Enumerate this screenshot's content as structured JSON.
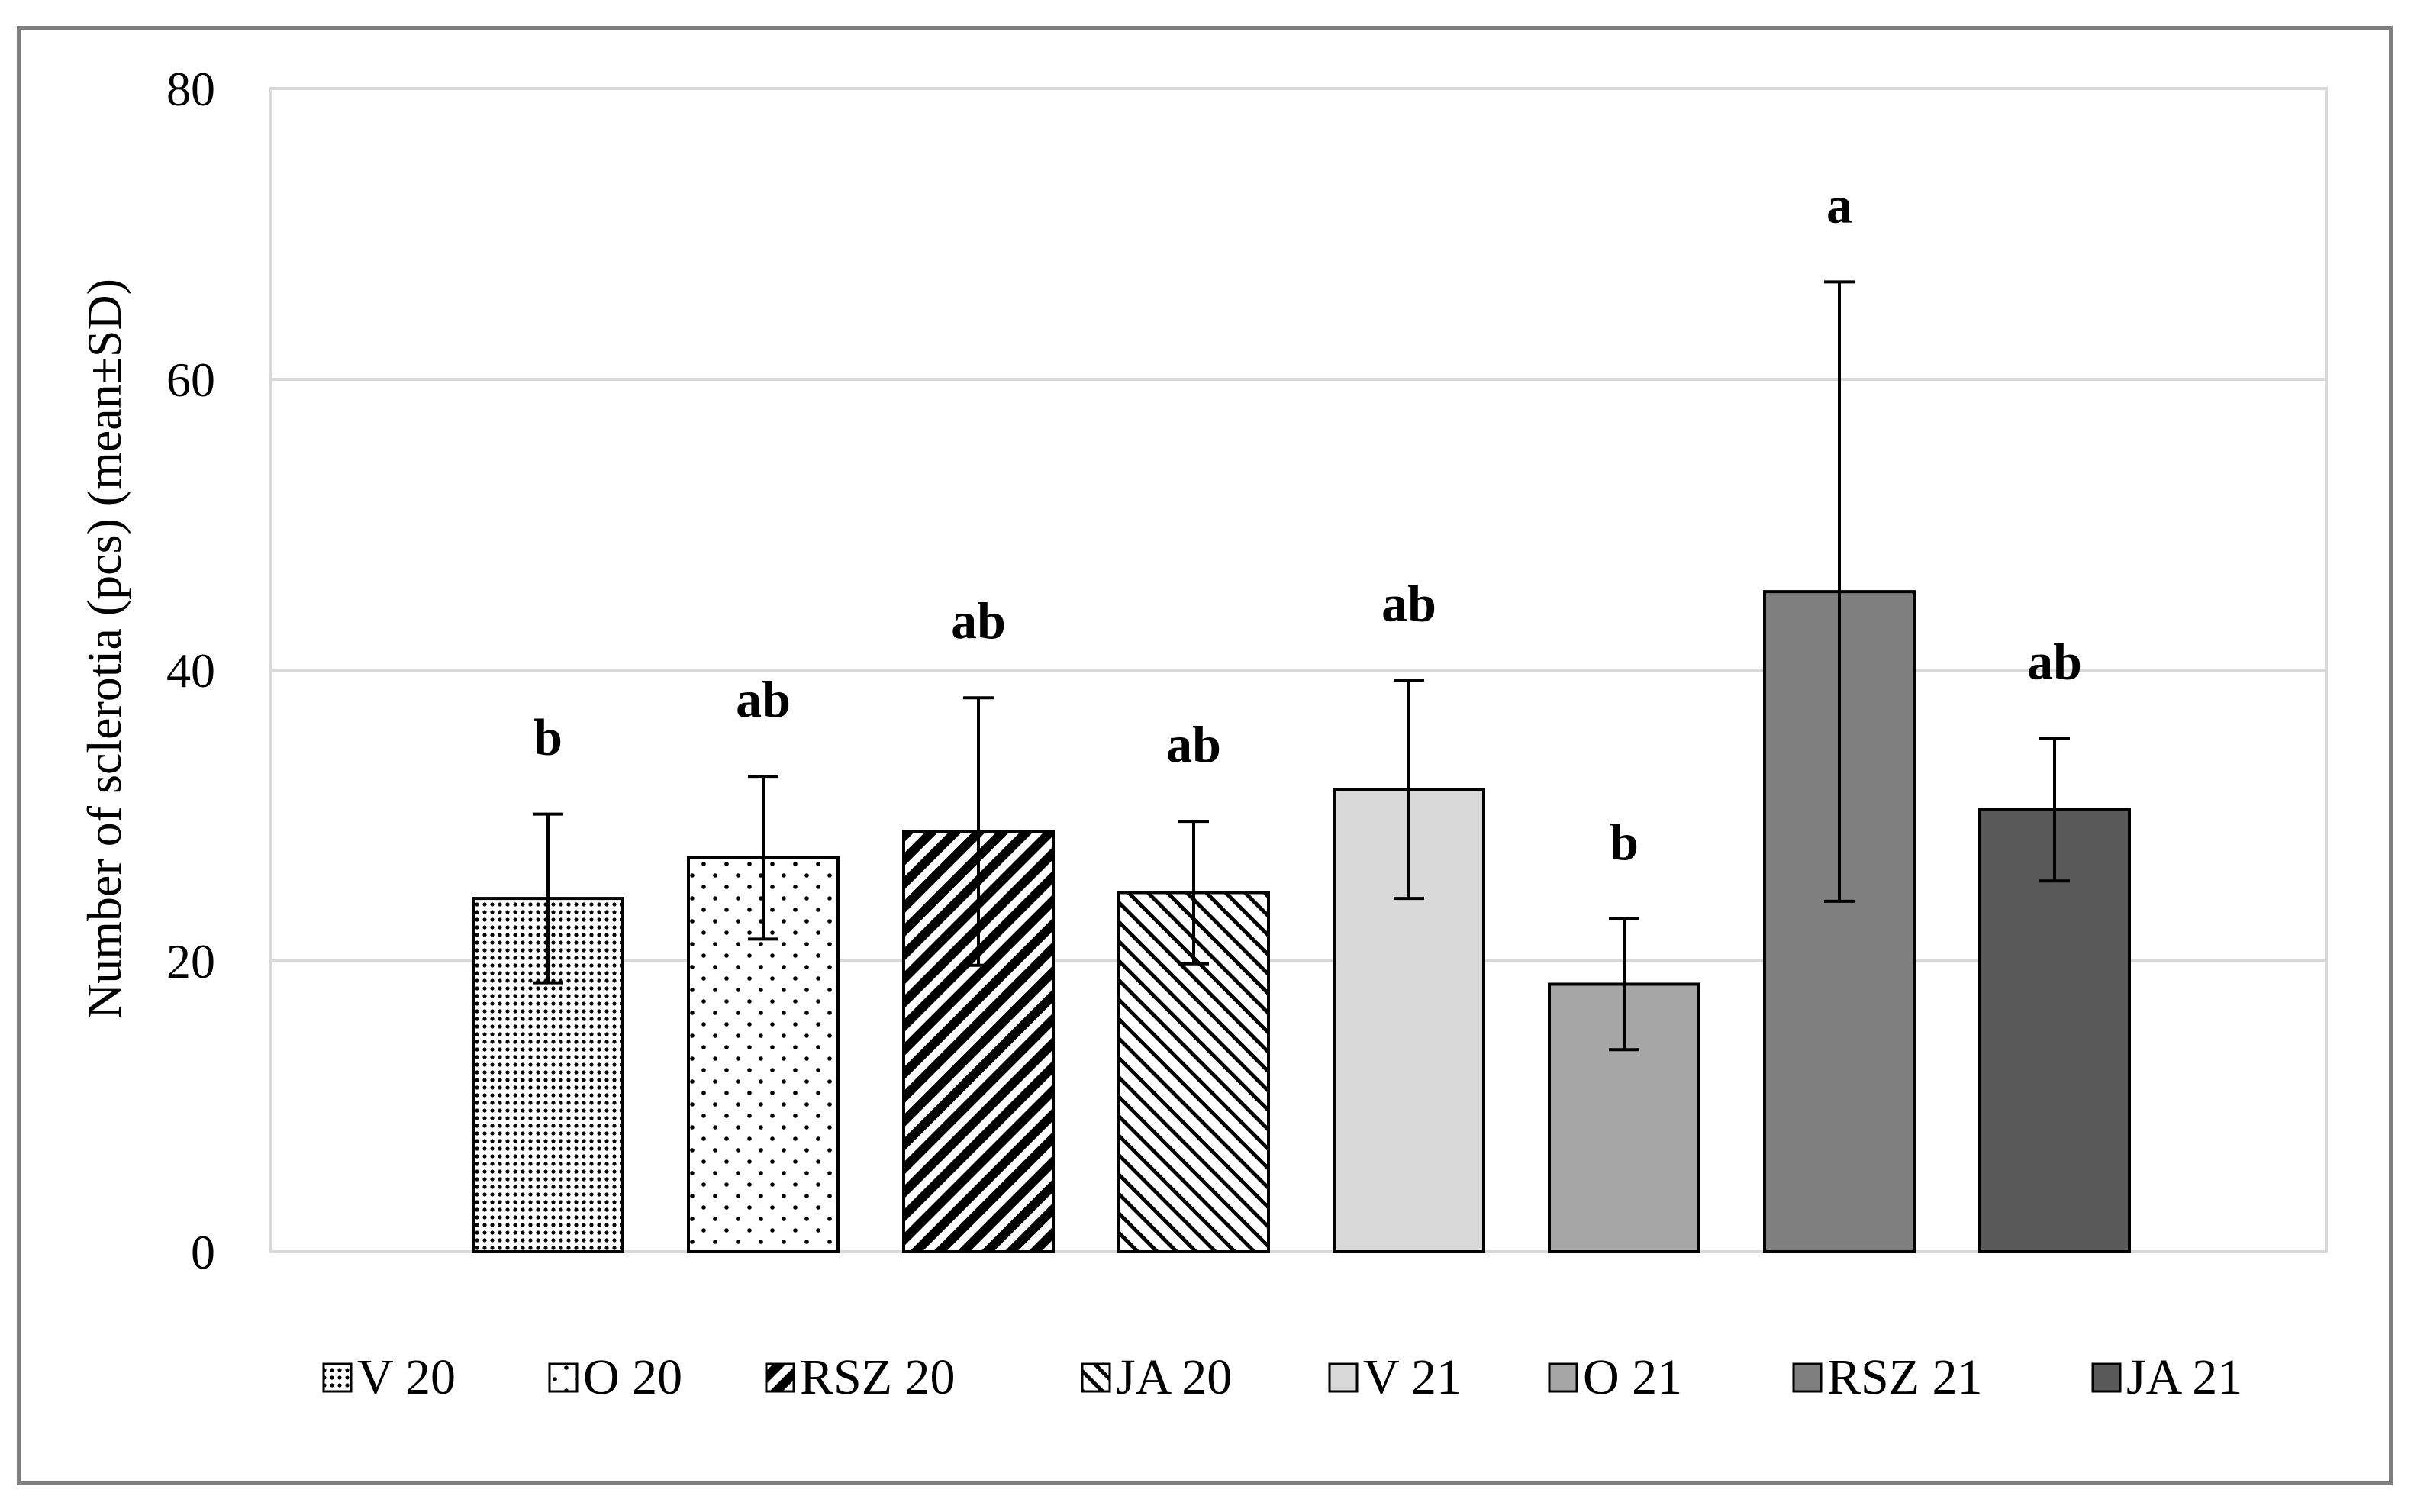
{
  "chart_data": {
    "type": "bar",
    "title": "",
    "xlabel": "",
    "ylabel": "Number of sclerotia (pcs) (mean±SD)",
    "ylim": [
      0,
      80
    ],
    "yticks": [
      0,
      20,
      40,
      60,
      80
    ],
    "grid": true,
    "legend_position": "bottom",
    "categories": [
      "V 20",
      "O 20",
      "RSZ 20",
      "JA 20",
      "V 21",
      "O 21",
      "RSZ 21",
      "JA 21"
    ],
    "values": [
      24.3,
      27.1,
      28.9,
      24.7,
      31.8,
      18.4,
      45.4,
      30.4
    ],
    "sd": [
      5.8,
      5.6,
      9.2,
      4.9,
      7.5,
      4.5,
      21.3,
      4.9
    ],
    "significance": [
      "b",
      "ab",
      "ab",
      "ab",
      "ab",
      "b",
      "a",
      "ab"
    ],
    "fills": [
      "dense-dots",
      "sparse-dots",
      "dark-diagonal",
      "light-diagonal",
      "#d9d9d9",
      "#a6a6a6",
      "#7f7f7f",
      "#595959"
    ]
  }
}
